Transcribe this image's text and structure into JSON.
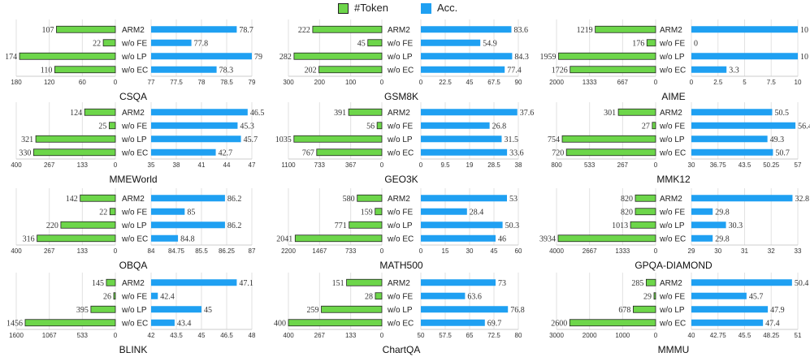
{
  "legend": {
    "token_label": "#Token",
    "acc_label": "Acc.",
    "token_color": "#6dd64a",
    "acc_color": "#1fa0f2"
  },
  "categories": [
    "ARM2",
    "w/o FE",
    "w/o LP",
    "w/o EC"
  ],
  "chart_data": [
    {
      "type": "bar",
      "title": "CSQA",
      "token_values": [
        107,
        22,
        174,
        110
      ],
      "token_ticks": [
        "180",
        "120",
        "60",
        "0"
      ],
      "token_max": 180,
      "acc_values": [
        78.7,
        77.8,
        79,
        78.3
      ],
      "acc_labels": [
        "78.7",
        "77.8",
        "79",
        "78.3"
      ],
      "acc_ticks": [
        "77",
        "77.5",
        "78",
        "78.5",
        "79"
      ],
      "acc_min": 77,
      "acc_max": 79
    },
    {
      "type": "bar",
      "title": "GSM8K",
      "token_values": [
        222,
        45,
        282,
        202
      ],
      "token_ticks": [
        "300",
        "200",
        "100",
        "0"
      ],
      "token_max": 300,
      "acc_values": [
        83.6,
        54.9,
        84.3,
        77.4
      ],
      "acc_labels": [
        "83.6",
        "54.9",
        "84.3",
        "77.4"
      ],
      "acc_ticks": [
        "0",
        "22.5",
        "45",
        "67.5",
        "90"
      ],
      "acc_min": 0,
      "acc_max": 90
    },
    {
      "type": "bar",
      "title": "AIME",
      "token_values": [
        1219,
        176,
        1959,
        1726
      ],
      "token_ticks": [
        "2000",
        "1333",
        "667",
        "0"
      ],
      "token_max": 2000,
      "acc_values": [
        10,
        0,
        10,
        3.3
      ],
      "acc_labels": [
        "10",
        "0",
        "10",
        "3.3"
      ],
      "acc_ticks": [
        "0",
        "2.5",
        "5",
        "7.5",
        "10"
      ],
      "acc_min": 0,
      "acc_max": 10
    },
    {
      "type": "bar",
      "title": "MMEWorld",
      "token_values": [
        124,
        25,
        321,
        330
      ],
      "token_ticks": [
        "400",
        "267",
        "133",
        "0"
      ],
      "token_max": 400,
      "acc_values": [
        46.5,
        45.3,
        45.7,
        42.7
      ],
      "acc_labels": [
        "46.5",
        "45.3",
        "45.7",
        "42.7"
      ],
      "acc_ticks": [
        "35",
        "38",
        "41",
        "44",
        "47"
      ],
      "acc_min": 35,
      "acc_max": 47
    },
    {
      "type": "bar",
      "title": "GEO3K",
      "token_values": [
        391,
        56,
        1035,
        767
      ],
      "token_ticks": [
        "1100",
        "733",
        "367",
        "0"
      ],
      "token_max": 1100,
      "acc_values": [
        37.6,
        26.8,
        31.5,
        33.6
      ],
      "acc_labels": [
        "37.6",
        "26.8",
        "31.5",
        "33.6"
      ],
      "acc_ticks": [
        "0",
        "9.5",
        "19",
        "28.5",
        "38"
      ],
      "acc_min": 0,
      "acc_max": 38
    },
    {
      "type": "bar",
      "title": "MMK12",
      "token_values": [
        301,
        27,
        754,
        720
      ],
      "token_ticks": [
        "800",
        "533",
        "267",
        "0"
      ],
      "token_max": 800,
      "acc_values": [
        50.5,
        56.4,
        49.3,
        50.7
      ],
      "acc_labels": [
        "50.5",
        "56.4",
        "49.3",
        "50.7"
      ],
      "acc_ticks": [
        "30",
        "36.75",
        "43.5",
        "50.25",
        "57"
      ],
      "acc_min": 30,
      "acc_max": 57
    },
    {
      "type": "bar",
      "title": "OBQA",
      "token_values": [
        142,
        22,
        220,
        316
      ],
      "token_ticks": [
        "400",
        "267",
        "133",
        "0"
      ],
      "token_max": 400,
      "acc_values": [
        86.2,
        85,
        86.2,
        84.8
      ],
      "acc_labels": [
        "86.2",
        "85",
        "86.2",
        "84.8"
      ],
      "acc_ticks": [
        "84",
        "84.75",
        "85.5",
        "86.25",
        "87"
      ],
      "acc_min": 84,
      "acc_max": 87
    },
    {
      "type": "bar",
      "title": "MATH500",
      "token_values": [
        580,
        159,
        771,
        2041
      ],
      "token_ticks": [
        "2200",
        "1467",
        "733",
        "0"
      ],
      "token_max": 2200,
      "acc_values": [
        53,
        28.4,
        50.3,
        46
      ],
      "acc_labels": [
        "53",
        "28.4",
        "50.3",
        "46"
      ],
      "acc_ticks": [
        "0",
        "15",
        "30",
        "45",
        "60"
      ],
      "acc_min": 0,
      "acc_max": 60
    },
    {
      "type": "bar",
      "title": "GPQA-DIAMOND",
      "token_values": [
        820,
        820,
        1013,
        3934
      ],
      "token_ticks": [
        "4000",
        "2667",
        "1333",
        "0"
      ],
      "token_max": 4000,
      "acc_values": [
        32.8,
        29.8,
        30.3,
        29.8
      ],
      "acc_labels": [
        "32.8",
        "29.8",
        "30.3",
        "29.8"
      ],
      "acc_ticks": [
        "29",
        "30",
        "31",
        "32",
        "33"
      ],
      "acc_min": 29,
      "acc_max": 33
    },
    {
      "type": "bar",
      "title": "BLINK",
      "token_values": [
        145,
        26,
        395,
        1456
      ],
      "token_ticks": [
        "1600",
        "1067",
        "533",
        "0"
      ],
      "token_max": 1600,
      "acc_values": [
        47.1,
        42.4,
        45,
        43.4
      ],
      "acc_labels": [
        "47.1",
        "42.4",
        "45",
        "43.4"
      ],
      "acc_ticks": [
        "42",
        "43.5",
        "45",
        "46.5",
        "48"
      ],
      "acc_min": 42,
      "acc_max": 48
    },
    {
      "type": "bar",
      "title": "ChartQA",
      "token_values": [
        151,
        28,
        259,
        400
      ],
      "token_ticks": [
        "400",
        "267",
        "133",
        "0"
      ],
      "token_max": 400,
      "acc_values": [
        73,
        63.6,
        76.8,
        69.7
      ],
      "acc_labels": [
        "73",
        "63.6",
        "76.8",
        "69.7"
      ],
      "acc_ticks": [
        "50",
        "57.5",
        "65",
        "72.5",
        "80"
      ],
      "acc_min": 50,
      "acc_max": 80
    },
    {
      "type": "bar",
      "title": "MMMU",
      "token_values": [
        285,
        29,
        678,
        2600
      ],
      "token_ticks": [
        "3000",
        "2000",
        "1000",
        "0"
      ],
      "token_max": 3000,
      "acc_values": [
        50.4,
        45.7,
        47.9,
        47.4
      ],
      "acc_labels": [
        "50.4",
        "45.7",
        "47.9",
        "47.4"
      ],
      "acc_ticks": [
        "40",
        "42.75",
        "45.5",
        "48.25",
        "51"
      ],
      "acc_min": 40,
      "acc_max": 51
    }
  ]
}
